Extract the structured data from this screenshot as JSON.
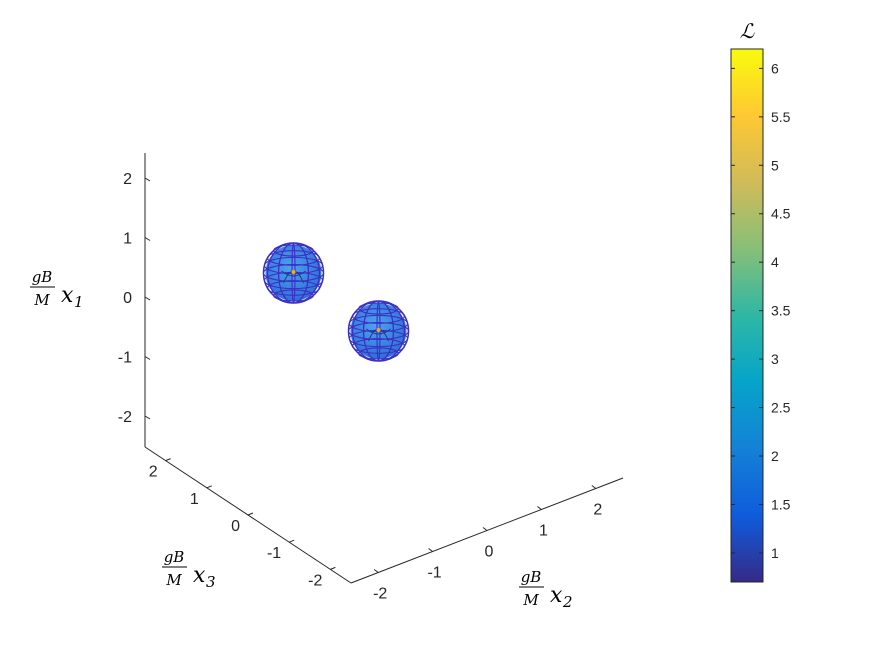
{
  "chart_data": {
    "type": "scatter",
    "plot_kind": "3d-isosurface-wireframe-spheres",
    "axes": {
      "x1": {
        "label_num": "gB",
        "label_den": "M",
        "label_var": "x",
        "label_sub": "1",
        "ticks": [
          2,
          1,
          0,
          -1,
          -2
        ],
        "tick_labels": [
          "2",
          "1",
          "0",
          "-1",
          "-2"
        ]
      },
      "x2": {
        "label_num": "gB",
        "label_den": "M",
        "label_var": "x",
        "label_sub": "2",
        "ticks": [
          -2,
          -1,
          0,
          1,
          2
        ],
        "tick_labels": [
          "-2",
          "-1",
          "0",
          "1",
          "2"
        ]
      },
      "x3": {
        "label_num": "gB",
        "label_den": "M",
        "label_var": "x",
        "label_sub": "3",
        "ticks": [
          2,
          1,
          0,
          -1,
          -2
        ],
        "tick_labels": [
          "2",
          "1",
          "0",
          "-1",
          "-2"
        ]
      }
    },
    "spheres": [
      {
        "name": "",
        "center": [
          0.5,
          -0.5,
          0.0
        ],
        "wire_color": "#3b2fc4",
        "fill_color": "#3a8ee6"
      },
      {
        "name": "",
        "center": [
          -0.5,
          0.5,
          0.0
        ],
        "wire_color": "#3b2fc4",
        "fill_color": "#3a8ee6"
      }
    ],
    "colorbar": {
      "title": "ℒ",
      "min": 0.7,
      "max": 6.2,
      "ticks": [
        6,
        5.5,
        5,
        4.5,
        4,
        3.5,
        3,
        2.5,
        2,
        1.5,
        1
      ],
      "tick_labels": [
        "6",
        "5.5",
        "5",
        "4.5",
        "4",
        "3.5",
        "3",
        "2.5",
        "2",
        "1.5",
        "1"
      ],
      "colormap": "parula",
      "colormap_stops": [
        "#352a87",
        "#0f5cdd",
        "#1481d6",
        "#06a4ca",
        "#2eb7a4",
        "#87bf77",
        "#d1bb59",
        "#fec832",
        "#f9fb0e"
      ]
    },
    "grid": false
  }
}
